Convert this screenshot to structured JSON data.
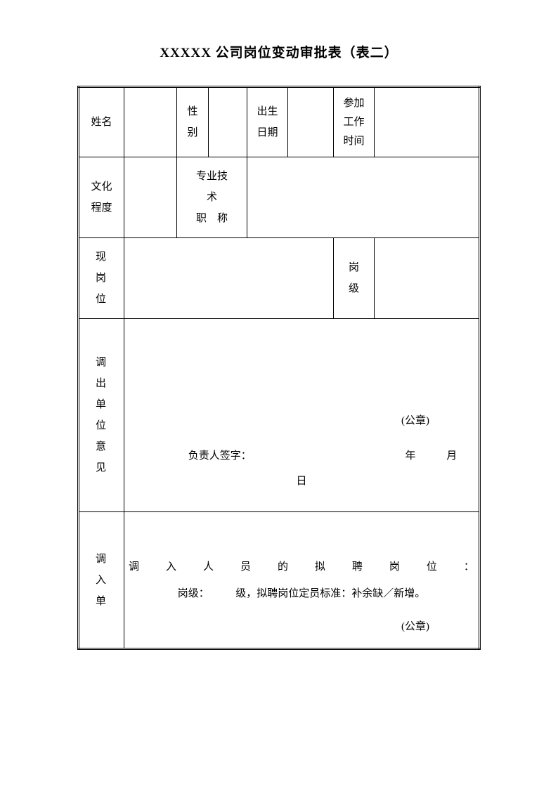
{
  "title": "XXXXX 公司岗位变动审批表（表二）",
  "labels": {
    "name": "姓名",
    "gender": "性\n别",
    "birth_date": "出生\n日期",
    "work_start": "参加\n工作\n时间",
    "education": "文化\n程度",
    "professional": "专业技\n术\n职　称",
    "current_position": "现\n岗\n位",
    "post_level": "岗\n级",
    "out_unit_opinion": "调\n出\n单\n位\n意\n见",
    "in_unit_opinion": "调\n入\n单"
  },
  "text": {
    "stamp": "(公章)",
    "sign_prefix": "负责人签字：",
    "year": "年",
    "month": "月",
    "day": "日",
    "incoming_line1_chars": [
      "调",
      "入",
      "人",
      "员",
      "的",
      "拟",
      "聘",
      "岗",
      "位",
      "："
    ],
    "incoming_line2": "岗级：　　　级，拟聘岗位定员标准：补余缺／新增。"
  },
  "style": {
    "background_color": "#ffffff",
    "text_color": "#000000",
    "border_color": "#000000",
    "title_fontsize": 19,
    "body_fontsize": 15
  }
}
